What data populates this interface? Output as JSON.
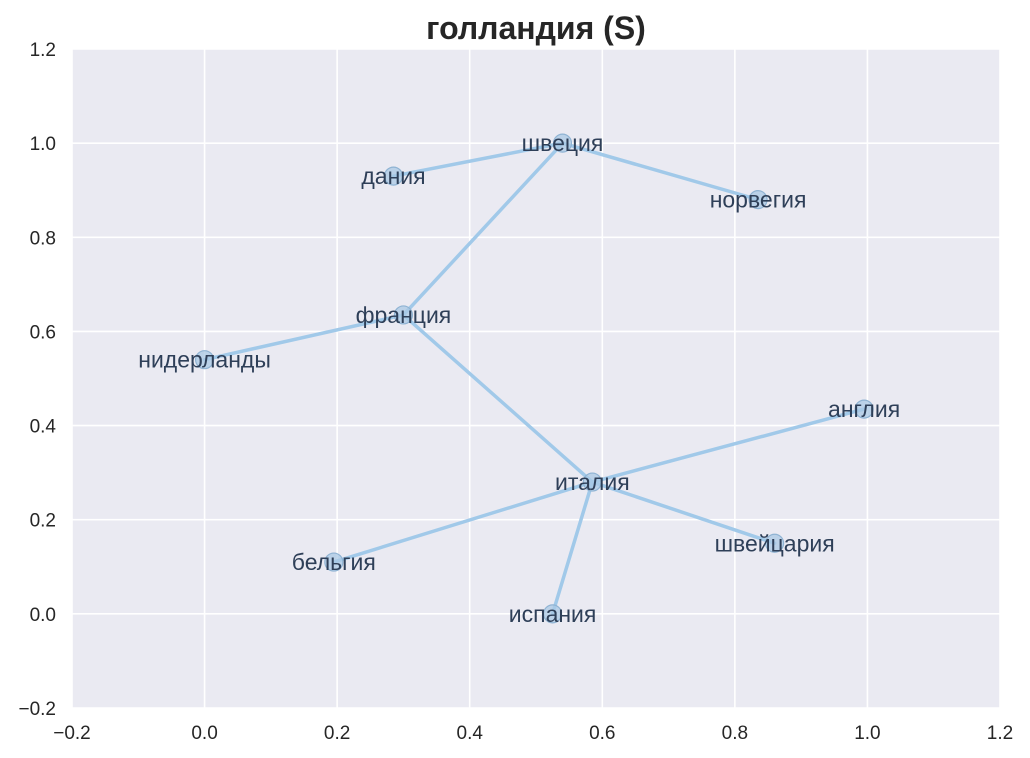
{
  "chart_data": {
    "type": "scatter",
    "title": "голландия (S)",
    "xlabel": "",
    "ylabel": "",
    "xlim": [
      -0.2,
      1.2
    ],
    "ylim": [
      -0.2,
      1.2
    ],
    "x_ticks": [
      -0.2,
      0.0,
      0.2,
      0.4,
      0.6,
      0.8,
      1.0,
      1.2
    ],
    "y_ticks": [
      -0.2,
      0.0,
      0.2,
      0.4,
      0.6,
      0.8,
      1.0,
      1.2
    ],
    "x_tick_labels": [
      "−0.2",
      "0.0",
      "0.2",
      "0.4",
      "0.6",
      "0.8",
      "1.0",
      "1.2"
    ],
    "y_tick_labels": [
      "−0.2",
      "0.0",
      "0.2",
      "0.4",
      "0.6",
      "0.8",
      "1.0",
      "1.2"
    ],
    "grid": true,
    "points": [
      {
        "label": "швеция",
        "x": 0.54,
        "y": 1.0
      },
      {
        "label": "дания",
        "x": 0.285,
        "y": 0.93
      },
      {
        "label": "норвегия",
        "x": 0.835,
        "y": 0.88
      },
      {
        "label": "франция",
        "x": 0.3,
        "y": 0.635
      },
      {
        "label": "нидерланды",
        "x": 0.0,
        "y": 0.54
      },
      {
        "label": "англия",
        "x": 0.995,
        "y": 0.435
      },
      {
        "label": "италия",
        "x": 0.585,
        "y": 0.28
      },
      {
        "label": "швейцария",
        "x": 0.86,
        "y": 0.15
      },
      {
        "label": "бельгия",
        "x": 0.195,
        "y": 0.11
      },
      {
        "label": "испания",
        "x": 0.525,
        "y": 0.0
      }
    ],
    "edges": [
      [
        "дания",
        "швеция"
      ],
      [
        "швеция",
        "норвегия"
      ],
      [
        "швеция",
        "франция"
      ],
      [
        "нидерланды",
        "франция"
      ],
      [
        "франция",
        "италия"
      ],
      [
        "италия",
        "англия"
      ],
      [
        "италия",
        "швейцария"
      ],
      [
        "италия",
        "бельгия"
      ],
      [
        "италия",
        "испания"
      ]
    ],
    "colors": {
      "plot_background": "#eaeaf2",
      "grid": "#ffffff",
      "edge": "#a1c9e9",
      "point_fill": "#a9c8e4",
      "point_stroke": "#8fb3d3",
      "label": "#2e3f58",
      "text": "#262626"
    }
  }
}
